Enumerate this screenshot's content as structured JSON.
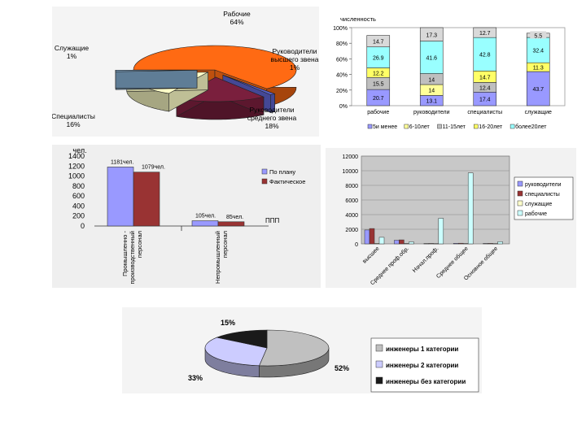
{
  "chart_data": [
    {
      "type": "pie",
      "slices": [
        {
          "label": "Рабочие",
          "pct_label": "64%",
          "value": 64,
          "color": "#ff6a13"
        },
        {
          "label": "Руководители высшего звена",
          "pct_label": "1%",
          "value": 1,
          "color": "#5a60c8"
        },
        {
          "label": "Руководители среднего звена",
          "pct_label": "18%",
          "value": 18,
          "color": "#7a1f3d"
        },
        {
          "label": "Специалисты",
          "pct_label": "16%",
          "value": 16,
          "color": "#ffffc8"
        },
        {
          "label": "Служащие",
          "pct_label": "1%",
          "value": 1,
          "color": "#7fa6c8"
        }
      ]
    },
    {
      "type": "bar",
      "stacked": true,
      "percent": true,
      "ylabel": "численность",
      "yticks": [
        "0%",
        "20%",
        "40%",
        "60%",
        "80%",
        "100%"
      ],
      "categories": [
        "рабочие",
        "руководители",
        "специалисты",
        "служащие"
      ],
      "series": [
        {
          "name": "5и менее",
          "color": "#9999ff",
          "values": [
            20.7,
            13.1,
            17.4,
            43.7
          ]
        },
        {
          "name": "6-10лет",
          "color": "#ffff99",
          "values": [
            0,
            14.0,
            0,
            0
          ]
        },
        {
          "name": "11-15лет",
          "color": "#bfbfbf",
          "values": [
            15.5,
            14.0,
            12.4,
            0
          ]
        },
        {
          "name": "16-20лет",
          "color": "#ffff66",
          "values": [
            12.2,
            0,
            14.7,
            11.3
          ]
        },
        {
          "name": "более20лет",
          "color": "#99ffff",
          "values": [
            26.9,
            41.6,
            42.8,
            32.4
          ]
        },
        {
          "name": "",
          "color": "#d9d9d9",
          "values": [
            14.7,
            17.3,
            12.7,
            5.5
          ]
        }
      ]
    },
    {
      "type": "bar",
      "ylabel": "чел.",
      "yticks": [
        "0",
        "200",
        "400",
        "600",
        "800",
        "1000",
        "1200",
        "1400"
      ],
      "ylim": [
        0,
        1400
      ],
      "categories": [
        "Промышленно-производственный персонал",
        "Непромышленный персонал"
      ],
      "series": [
        {
          "name": "По плану",
          "color": "#9999ff",
          "values": [
            1181,
            105
          ],
          "labels": [
            "1181чел.",
            "105чел."
          ]
        },
        {
          "name": "Фактическое",
          "color": "#993333",
          "values": [
            1079,
            85
          ],
          "labels": [
            "1079чел.",
            "85чел."
          ]
        }
      ],
      "extra_label": "ППП"
    },
    {
      "type": "bar",
      "yticks": [
        "0",
        "2000",
        "4000",
        "6000",
        "8000",
        "10000",
        "12000"
      ],
      "ylim": [
        0,
        12000
      ],
      "categories": [
        "высшее",
        "Среднее проф.обр.",
        "Начал.проф.",
        "Среднее общее",
        "Основное общее"
      ],
      "series": [
        {
          "name": "руководители",
          "color": "#9999ff",
          "values": [
            1900,
            500,
            50,
            80,
            60
          ]
        },
        {
          "name": "специалисты",
          "color": "#993333",
          "values": [
            2100,
            550,
            60,
            90,
            70
          ]
        },
        {
          "name": "служащие",
          "color": "#ffffcc",
          "values": [
            80,
            60,
            40,
            50,
            40
          ]
        },
        {
          "name": "рабочие",
          "color": "#ccffff",
          "values": [
            900,
            280,
            3500,
            9700,
            300
          ]
        }
      ]
    },
    {
      "type": "pie",
      "slices": [
        {
          "label": "инженеры 1 категории",
          "pct_label": "52%",
          "value": 52,
          "color": "#c0c0c0"
        },
        {
          "label": "инженеры 2 категории",
          "pct_label": "33%",
          "value": 33,
          "color": "#ccccff"
        },
        {
          "label": "инженеры без категории",
          "pct_label": "15%",
          "value": 15,
          "color": "#1a1a1a"
        }
      ]
    }
  ]
}
